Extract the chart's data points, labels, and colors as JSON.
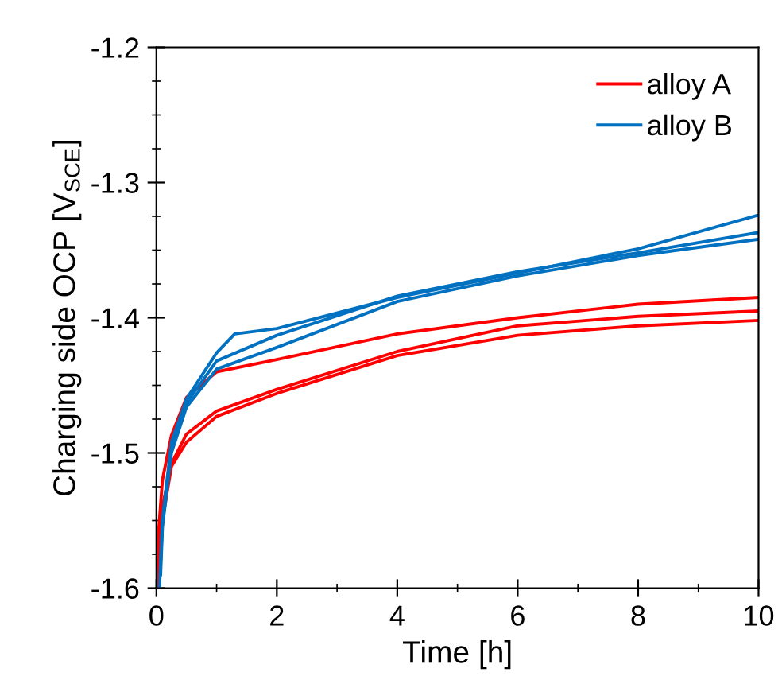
{
  "chart_data": {
    "type": "line",
    "xlabel": "Time [h]",
    "ylabel": "Charging side OCP [V$_{SCE}$]",
    "xlim": [
      0,
      10
    ],
    "xticks": [
      0,
      2,
      4,
      6,
      8,
      10
    ],
    "ylim": [
      -1.6,
      -1.2
    ],
    "yticks": [
      -1.6,
      -1.5,
      -1.4,
      -1.3,
      -1.2
    ],
    "grid": false,
    "legend": "top right",
    "marker": "none",
    "line_style": "solid",
    "series": [
      {
        "name": "alloy A",
        "color": "#ff0000",
        "x": [
          0,
          0.05,
          0.1,
          0.25,
          0.5,
          1,
          2,
          4,
          6,
          8,
          10
        ],
        "values": [
          -1.58,
          -1.55,
          -1.52,
          -1.487,
          -1.459,
          -1.44,
          -1.431,
          -1.412,
          -1.4,
          -1.39,
          -1.385
        ]
      },
      {
        "color": "#ff0000",
        "x": [
          0,
          0.05,
          0.1,
          0.25,
          0.5,
          1,
          2,
          4,
          6,
          8,
          10
        ],
        "values": [
          -1.59,
          -1.57,
          -1.54,
          -1.508,
          -1.486,
          -1.469,
          -1.453,
          -1.425,
          -1.406,
          -1.399,
          -1.395
        ]
      },
      {
        "color": "#ff0000",
        "x": [
          0,
          0.05,
          0.1,
          0.25,
          0.5,
          1,
          2,
          4,
          6,
          8,
          10
        ],
        "values": [
          -1.6,
          -1.58,
          -1.55,
          -1.51,
          -1.492,
          -1.473,
          -1.456,
          -1.428,
          -1.413,
          -1.406,
          -1.402
        ]
      },
      {
        "name": "alloy B",
        "color": "#0070c0",
        "x": [
          0.05,
          0.1,
          0.25,
          0.5,
          1,
          1.3,
          2,
          4,
          6,
          8,
          10
        ],
        "values": [
          -1.6,
          -1.549,
          -1.492,
          -1.46,
          -1.426,
          -1.412,
          -1.408,
          -1.385,
          -1.367,
          -1.349,
          -1.324
        ]
      },
      {
        "color": "#0070c0",
        "x": [
          0.05,
          0.1,
          0.25,
          0.5,
          1,
          2,
          4,
          6,
          8,
          10
        ],
        "values": [
          -1.6,
          -1.552,
          -1.495,
          -1.463,
          -1.432,
          -1.413,
          -1.384,
          -1.366,
          -1.352,
          -1.337
        ]
      },
      {
        "color": "#0070c0",
        "x": [
          0.07,
          0.1,
          0.25,
          0.5,
          1,
          2,
          4,
          6,
          8,
          10
        ],
        "values": [
          -1.59,
          -1.555,
          -1.5,
          -1.466,
          -1.438,
          -1.422,
          -1.388,
          -1.369,
          -1.354,
          -1.342
        ]
      }
    ]
  }
}
